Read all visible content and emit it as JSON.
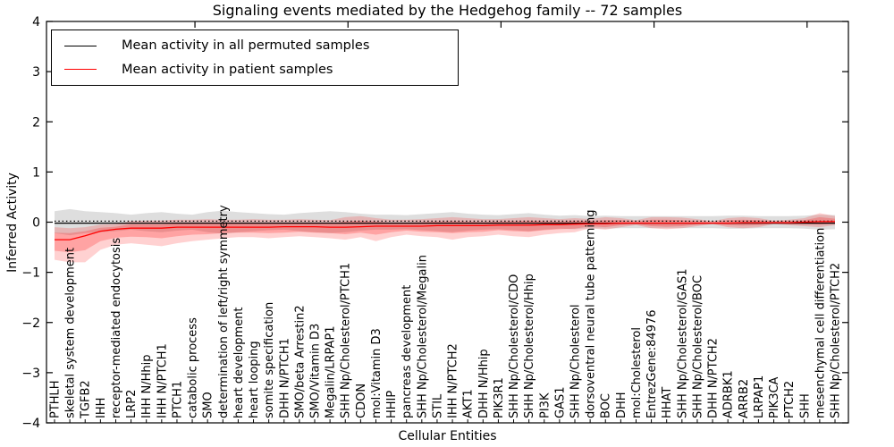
{
  "window": {
    "kind": "matplotlib-figure"
  },
  "chart": {
    "title": "Signaling events mediated by the Hedgehog family -- 72 samples",
    "xlabel": "Cellular Entities",
    "ylabel": "Inferred Activity"
  },
  "legend": {
    "items": [
      {
        "label": "Mean activity in all permuted samples",
        "color": "#000000"
      },
      {
        "label": "Mean activity in patient samples",
        "color": "#ff0000"
      }
    ]
  },
  "chart_data": {
    "type": "line",
    "title": "Signaling events mediated by the Hedgehog family -- 72 samples",
    "xlabel": "Cellular Entities",
    "ylabel": "Inferred Activity",
    "ylim": [
      -4,
      4
    ],
    "yticks": [
      -4,
      -3,
      -2,
      -1,
      0,
      1,
      2,
      3,
      4
    ],
    "grid": false,
    "legend_position": "upper left",
    "zero_line": {
      "value": 0.02,
      "style": "dotted",
      "color": "#000000"
    },
    "categories": [
      "PTHLH",
      "skeletal system development",
      "TGFB2",
      "IHH",
      "receptor-mediated endocytosis",
      "LRP2",
      "IHH N/Hhip",
      "IHH N/PTCH1",
      "PTCH1",
      "catabolic process",
      "SMO",
      "determination of left/right symmetry",
      "heart development",
      "heart looping",
      "somite specification",
      "DHH N/PTCH1",
      "SMO/beta Arrestin2",
      "SMO/Vitamin D3",
      "Megalin/LRPAP1",
      "SHH Np/Cholesterol/PTCH1",
      "CDON",
      "mol:Vitamin D3",
      "HHIP",
      "pancreas development",
      "SHH Np/Cholesterol/Megalin",
      "STIL",
      "IHH N/PTCH2",
      "AKT1",
      "DHH N/Hhip",
      "PIK3R1",
      "SHH Np/Cholesterol/CDO",
      "SHH Np/Cholesterol/Hhip",
      "PI3K",
      "GAS1",
      "SHH Np/Cholesterol",
      "dorsoventral neural tube patterning",
      "BOC",
      "DHH",
      "mol:Cholesterol",
      "EntrezGene:84976",
      "HHAT",
      "SHH Np/Cholesterol/GAS1",
      "SHH Np/Cholesterol/BOC",
      "DHH N/PTCH2",
      "ADRBK1",
      "ARRB2",
      "LRPAP1",
      "PIK3CA",
      "PTCH2",
      "SHH",
      "mesenchymal cell differentiation",
      "SHH Np/Cholesterol/PTCH2"
    ],
    "series": [
      {
        "name": "Mean activity in all permuted samples",
        "color": "#000000",
        "constant": -0.02
      },
      {
        "name": "Mean activity in patient samples",
        "color": "#ff0000",
        "values": [
          -0.35,
          -0.35,
          -0.27,
          -0.18,
          -0.14,
          -0.12,
          -0.12,
          -0.12,
          -0.1,
          -0.1,
          -0.1,
          -0.1,
          -0.1,
          -0.1,
          -0.1,
          -0.09,
          -0.09,
          -0.09,
          -0.1,
          -0.1,
          -0.09,
          -0.08,
          -0.08,
          -0.08,
          -0.08,
          -0.07,
          -0.07,
          -0.07,
          -0.07,
          -0.06,
          -0.06,
          -0.06,
          -0.05,
          -0.05,
          -0.04,
          -0.03,
          -0.03,
          -0.02,
          -0.02,
          -0.02,
          -0.02,
          -0.02,
          -0.02,
          -0.02,
          -0.02,
          -0.01,
          -0.01,
          -0.01,
          -0.01,
          0.0,
          0.01,
          0.01
        ]
      }
    ],
    "bands": [
      {
        "name": "permuted-samples-range",
        "color": "rgba(0,0,0,0.13)",
        "lo": [
          -0.22,
          -0.26,
          -0.22,
          -0.2,
          -0.18,
          -0.15,
          -0.18,
          -0.2,
          -0.17,
          -0.15,
          -0.2,
          -0.23,
          -0.2,
          -0.18,
          -0.16,
          -0.15,
          -0.18,
          -0.2,
          -0.22,
          -0.2,
          -0.17,
          -0.15,
          -0.15,
          -0.14,
          -0.16,
          -0.18,
          -0.2,
          -0.17,
          -0.15,
          -0.14,
          -0.16,
          -0.18,
          -0.15,
          -0.13,
          -0.14,
          -0.12,
          -0.13,
          -0.12,
          -0.12,
          -0.12,
          -0.12,
          -0.12,
          -0.12,
          -0.12,
          -0.13,
          -0.13,
          -0.12,
          -0.12,
          -0.12,
          -0.13,
          -0.15,
          -0.14
        ],
        "hi": [
          0.22,
          0.26,
          0.22,
          0.2,
          0.18,
          0.15,
          0.18,
          0.2,
          0.17,
          0.15,
          0.2,
          0.23,
          0.2,
          0.18,
          0.16,
          0.15,
          0.18,
          0.2,
          0.22,
          0.2,
          0.17,
          0.15,
          0.15,
          0.14,
          0.16,
          0.18,
          0.2,
          0.17,
          0.15,
          0.14,
          0.16,
          0.18,
          0.15,
          0.13,
          0.14,
          0.12,
          0.13,
          0.12,
          0.12,
          0.12,
          0.12,
          0.12,
          0.12,
          0.12,
          0.13,
          0.13,
          0.12,
          0.12,
          0.12,
          0.13,
          0.15,
          0.14
        ]
      },
      {
        "name": "patient-samples-outer-range",
        "color": "rgba(255,0,0,0.18)",
        "lo": [
          -0.75,
          -0.8,
          -0.8,
          -0.55,
          -0.45,
          -0.42,
          -0.45,
          -0.48,
          -0.42,
          -0.38,
          -0.35,
          -0.32,
          -0.3,
          -0.3,
          -0.32,
          -0.3,
          -0.28,
          -0.3,
          -0.32,
          -0.35,
          -0.3,
          -0.38,
          -0.3,
          -0.25,
          -0.28,
          -0.3,
          -0.35,
          -0.3,
          -0.28,
          -0.25,
          -0.28,
          -0.3,
          -0.25,
          -0.22,
          -0.2,
          -0.12,
          -0.15,
          -0.1,
          -0.06,
          -0.12,
          -0.14,
          -0.12,
          -0.08,
          -0.04,
          -0.1,
          -0.12,
          -0.1,
          -0.04,
          -0.06,
          -0.08,
          -0.1,
          -0.06
        ],
        "hi": [
          -0.1,
          -0.12,
          -0.1,
          -0.05,
          -0.04,
          0.02,
          0.03,
          0.03,
          0.05,
          0.05,
          0.06,
          0.05,
          0.05,
          0.06,
          0.05,
          0.05,
          0.06,
          0.05,
          0.04,
          0.1,
          0.12,
          0.08,
          0.05,
          0.05,
          0.06,
          0.08,
          0.1,
          0.08,
          0.06,
          0.06,
          0.08,
          0.1,
          0.08,
          0.06,
          0.08,
          0.06,
          0.1,
          0.08,
          0.04,
          0.1,
          0.1,
          0.09,
          0.06,
          0.02,
          0.08,
          0.1,
          0.08,
          0.03,
          0.05,
          0.08,
          0.18,
          0.12
        ]
      },
      {
        "name": "patient-samples-inner-range",
        "color": "rgba(255,0,0,0.22)",
        "lo": [
          -0.57,
          -0.6,
          -0.56,
          -0.38,
          -0.31,
          -0.29,
          -0.3,
          -0.32,
          -0.28,
          -0.25,
          -0.24,
          -0.22,
          -0.21,
          -0.21,
          -0.22,
          -0.21,
          -0.19,
          -0.21,
          -0.22,
          -0.24,
          -0.21,
          -0.25,
          -0.2,
          -0.17,
          -0.19,
          -0.2,
          -0.22,
          -0.2,
          -0.19,
          -0.16,
          -0.18,
          -0.19,
          -0.16,
          -0.14,
          -0.13,
          -0.08,
          -0.1,
          -0.06,
          -0.04,
          -0.08,
          -0.09,
          -0.08,
          -0.05,
          -0.03,
          -0.06,
          -0.07,
          -0.06,
          -0.03,
          -0.04,
          -0.04,
          -0.05,
          -0.03
        ],
        "hi": [
          -0.21,
          -0.22,
          -0.18,
          -0.11,
          -0.09,
          -0.04,
          -0.04,
          -0.04,
          -0.02,
          -0.02,
          -0.01,
          -0.02,
          -0.02,
          -0.01,
          -0.02,
          -0.01,
          -0.01,
          -0.01,
          -0.02,
          0.01,
          0.03,
          0.01,
          -0.01,
          -0.01,
          0.0,
          0.01,
          0.02,
          0.01,
          0.0,
          0.01,
          0.02,
          0.03,
          0.02,
          0.01,
          0.03,
          0.02,
          0.04,
          0.04,
          0.01,
          0.05,
          0.05,
          0.04,
          0.02,
          0.0,
          0.04,
          0.05,
          0.04,
          0.01,
          0.02,
          0.04,
          0.1,
          0.07
        ]
      }
    ]
  },
  "colors": {
    "axis": "#000000",
    "permuted_line": "#000000",
    "patient_line": "#ff0000",
    "permuted_band": "rgba(0,0,0,0.13)",
    "patient_band": "rgba(255,0,0,0.2)"
  }
}
